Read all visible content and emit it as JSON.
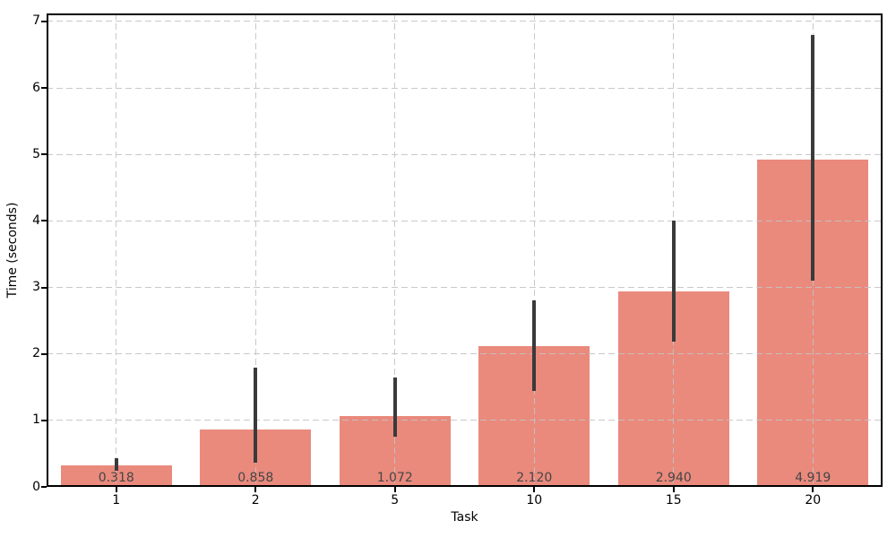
{
  "chart_data": {
    "type": "bar",
    "title": "",
    "xlabel": "Task",
    "ylabel": "Time (seconds)",
    "categories": [
      "1",
      "2",
      "5",
      "10",
      "15",
      "20"
    ],
    "values": [
      0.318,
      0.858,
      1.072,
      2.12,
      2.94,
      4.919
    ],
    "value_labels": [
      "0.318",
      "0.858",
      "1.072",
      "2.120",
      "2.940",
      "4.919"
    ],
    "error_low": [
      0.24,
      0.36,
      0.76,
      1.44,
      2.18,
      3.1
    ],
    "error_high": [
      0.43,
      1.79,
      1.65,
      2.8,
      4.0,
      6.8
    ],
    "yticks": [
      0,
      1,
      2,
      3,
      4,
      5,
      6,
      7
    ],
    "ylim": [
      0,
      7.12
    ],
    "bar_width_fraction": 0.8,
    "grid": "both-axes-dashed-drawn-above-bars",
    "legend": "none",
    "colors": {
      "bar": "#E98A7D",
      "error_bar": "#3A3A3A",
      "grid": "#C3C3C3",
      "spine": "#000000",
      "value_label": "#454545",
      "tick_label": "#000000"
    }
  }
}
